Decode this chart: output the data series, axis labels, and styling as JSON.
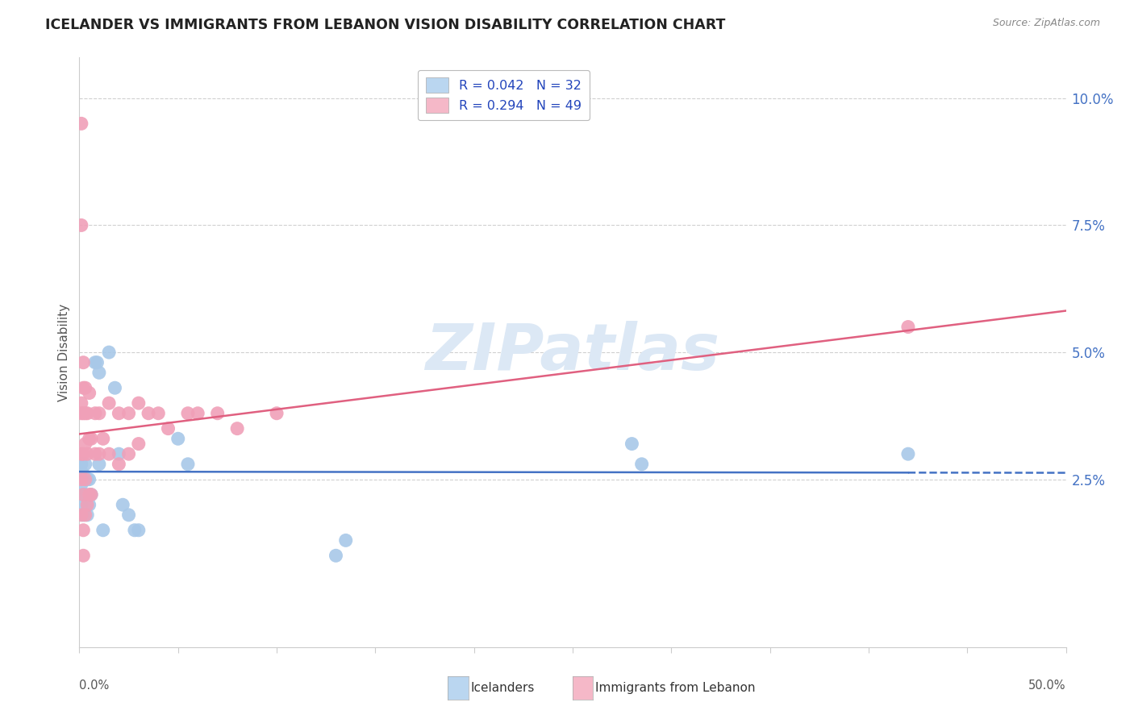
{
  "title": "ICELANDER VS IMMIGRANTS FROM LEBANON VISION DISABILITY CORRELATION CHART",
  "source": "Source: ZipAtlas.com",
  "xlabel_icelanders": "Icelanders",
  "xlabel_lebanon": "Immigrants from Lebanon",
  "ylabel": "Vision Disability",
  "xlim": [
    0.0,
    0.5
  ],
  "ylim": [
    -0.008,
    0.108
  ],
  "xtick_positions": [
    0.0,
    0.05,
    0.1,
    0.15,
    0.2,
    0.25,
    0.3,
    0.35,
    0.4,
    0.45,
    0.5
  ],
  "yticks": [
    0.025,
    0.05,
    0.075,
    0.1
  ],
  "ytick_labels": [
    "2.5%",
    "5.0%",
    "7.5%",
    "10.0%"
  ],
  "R_blue": 0.042,
  "N_blue": 32,
  "R_pink": 0.294,
  "N_pink": 49,
  "blue_scatter_color": "#a8c8e8",
  "pink_scatter_color": "#f0a0b8",
  "blue_line_color": "#4472c4",
  "pink_line_color": "#e06080",
  "legend_blue_face": "#bad6f0",
  "legend_pink_face": "#f5b8c8",
  "watermark_color": "#dce8f5",
  "grid_color": "#d0d0d0",
  "axis_color": "#cccccc",
  "title_color": "#222222",
  "source_color": "#888888",
  "label_color": "#555555",
  "right_tick_color": "#4472c4",
  "icelanders_x": [
    0.001,
    0.001,
    0.001,
    0.002,
    0.002,
    0.002,
    0.003,
    0.003,
    0.004,
    0.004,
    0.005,
    0.005,
    0.006,
    0.008,
    0.009,
    0.01,
    0.01,
    0.012,
    0.015,
    0.018,
    0.02,
    0.022,
    0.025,
    0.028,
    0.03,
    0.05,
    0.055,
    0.13,
    0.135,
    0.28,
    0.285,
    0.42
  ],
  "icelanders_y": [
    0.028,
    0.024,
    0.02,
    0.026,
    0.022,
    0.018,
    0.028,
    0.022,
    0.025,
    0.018,
    0.025,
    0.02,
    0.022,
    0.048,
    0.048,
    0.046,
    0.028,
    0.015,
    0.05,
    0.043,
    0.03,
    0.02,
    0.018,
    0.015,
    0.015,
    0.033,
    0.028,
    0.01,
    0.013,
    0.032,
    0.028,
    0.03
  ],
  "lebanon_x": [
    0.001,
    0.001,
    0.001,
    0.001,
    0.001,
    0.001,
    0.001,
    0.002,
    0.002,
    0.002,
    0.002,
    0.002,
    0.002,
    0.003,
    0.003,
    0.003,
    0.003,
    0.003,
    0.004,
    0.004,
    0.004,
    0.005,
    0.005,
    0.005,
    0.006,
    0.006,
    0.008,
    0.008,
    0.01,
    0.01,
    0.012,
    0.015,
    0.015,
    0.02,
    0.02,
    0.025,
    0.025,
    0.03,
    0.03,
    0.035,
    0.04,
    0.045,
    0.055,
    0.06,
    0.07,
    0.08,
    0.1,
    0.42,
    0.002
  ],
  "lebanon_y": [
    0.095,
    0.075,
    0.04,
    0.038,
    0.03,
    0.025,
    0.018,
    0.048,
    0.043,
    0.038,
    0.03,
    0.022,
    0.015,
    0.043,
    0.038,
    0.032,
    0.025,
    0.018,
    0.038,
    0.03,
    0.02,
    0.042,
    0.033,
    0.022,
    0.033,
    0.022,
    0.038,
    0.03,
    0.038,
    0.03,
    0.033,
    0.04,
    0.03,
    0.038,
    0.028,
    0.038,
    0.03,
    0.04,
    0.032,
    0.038,
    0.038,
    0.035,
    0.038,
    0.038,
    0.038,
    0.035,
    0.038,
    0.055,
    0.01
  ]
}
